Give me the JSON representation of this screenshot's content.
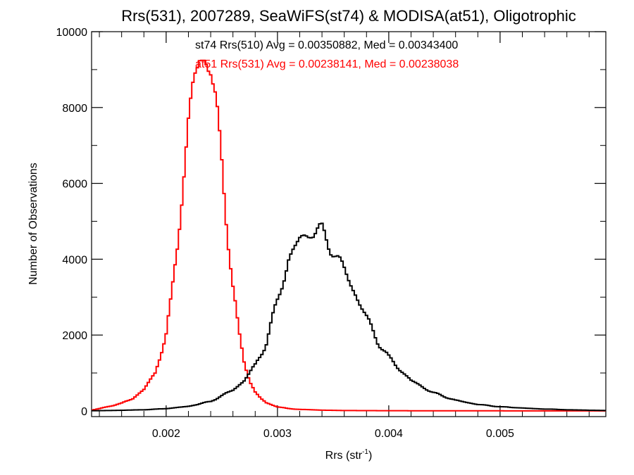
{
  "chart_data": {
    "type": "line",
    "title": "Rrs(531), 2007289, SeaWiFS(st74) & MODISA(at51), Oligotrophic",
    "xlabel": "Rrs (str",
    "xlabel_sup": "-1",
    "xlabel_end": ")",
    "ylabel": "Number of Observations",
    "xlim": [
      0.00133,
      0.00595
    ],
    "ylim": [
      -150,
      10000
    ],
    "xticks": [
      0.002,
      0.003,
      0.004,
      0.005
    ],
    "xtick_labels": [
      "0.002",
      "0.003",
      "0.004",
      "0.005"
    ],
    "yticks": [
      0,
      2000,
      4000,
      6000,
      8000,
      10000
    ],
    "ytick_labels": [
      "0",
      "2000",
      "4000",
      "6000",
      "8000",
      "10000"
    ],
    "grid": false,
    "annotations": [
      {
        "text": "st74 Rrs(510) Avg = 0.00350882, Med = 0.00343400",
        "color": "#000000"
      },
      {
        "text": "at51 Rrs(531) Avg = 0.00238141, Med = 0.00238038",
        "color": "#ff0000"
      }
    ],
    "series": [
      {
        "color": "#ff0000",
        "x": [
          0.00133,
          0.0014,
          0.0015,
          0.0016,
          0.0017,
          0.0018,
          0.0019,
          0.002,
          0.00205,
          0.0021,
          0.00215,
          0.0022,
          0.00225,
          0.0023,
          0.00235,
          0.0024,
          0.00245,
          0.0025,
          0.00255,
          0.0026,
          0.00265,
          0.0027,
          0.00275,
          0.0028,
          0.00285,
          0.0029,
          0.003,
          0.0031,
          0.0032,
          0.0034,
          0.0036,
          0.004,
          0.0045,
          0.005,
          0.00595
        ],
        "y": [
          20,
          60,
          130,
          200,
          330,
          560,
          1000,
          2000,
          3000,
          4400,
          6000,
          7500,
          8700,
          9300,
          9400,
          9000,
          8000,
          6500,
          4800,
          3300,
          2100,
          1300,
          800,
          500,
          330,
          210,
          110,
          60,
          40,
          20,
          10,
          5,
          3,
          2,
          0
        ]
      },
      {
        "color": "#000000",
        "x": [
          0.00133,
          0.0015,
          0.0018,
          0.002,
          0.0022,
          0.0024,
          0.0026,
          0.0027,
          0.0028,
          0.0029,
          0.003,
          0.0031,
          0.0032,
          0.0033,
          0.0034,
          0.0035,
          0.0036,
          0.0037,
          0.0038,
          0.0039,
          0.004,
          0.0042,
          0.0044,
          0.0046,
          0.0048,
          0.005,
          0.0053,
          0.0056,
          0.00595
        ],
        "y": [
          5,
          10,
          30,
          60,
          120,
          250,
          550,
          800,
          1200,
          1800,
          2900,
          4000,
          4500,
          4750,
          4700,
          4250,
          3700,
          3100,
          2450,
          1850,
          1400,
          800,
          480,
          280,
          170,
          110,
          60,
          30,
          10
        ]
      }
    ]
  }
}
